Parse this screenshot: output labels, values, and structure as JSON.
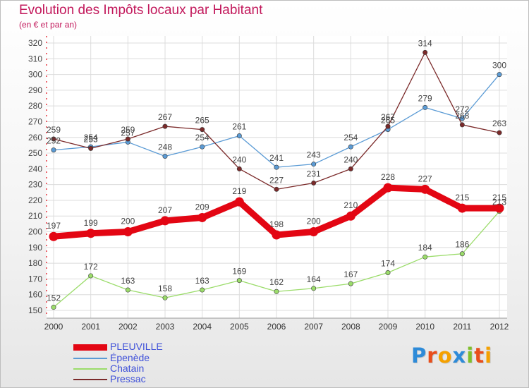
{
  "header": {
    "title": "Evolution des Impôts locaux par Habitant",
    "subtitle": "(en € et par an)"
  },
  "logo": {
    "text": "Proxiti",
    "letters": [
      {
        "char": "P",
        "color": "#2e8bd8"
      },
      {
        "char": "r",
        "color": "#e94e1b"
      },
      {
        "char": "o",
        "color": "#f5a100"
      },
      {
        "char": "x",
        "color": "#2e8bd8"
      },
      {
        "char": "i",
        "color": "#7fbf2b"
      },
      {
        "char": "t",
        "color": "#e94e1b"
      },
      {
        "char": "i",
        "color": "#f5a100"
      }
    ]
  },
  "chart_data": {
    "type": "line",
    "title": "Evolution des Impôts locaux par Habitant",
    "subtitle": "(en € et par an)",
    "x": [
      "2000",
      "2001",
      "2002",
      "2003",
      "2004",
      "2005",
      "2006",
      "2007",
      "2008",
      "2009",
      "2010",
      "2011",
      "2012"
    ],
    "ylim": [
      150,
      320
    ],
    "yticks": [
      150,
      160,
      170,
      180,
      190,
      200,
      210,
      220,
      230,
      240,
      250,
      260,
      270,
      280,
      290,
      300,
      310,
      320
    ],
    "grid": true,
    "legend_position": "bottom-left",
    "series": [
      {
        "name": "PLEUVILLE",
        "color": "#e30613",
        "emphasis": true,
        "values": [
          197,
          199,
          200,
          207,
          209,
          219,
          198,
          200,
          210,
          228,
          227,
          215,
          215
        ]
      },
      {
        "name": "Épenède",
        "color": "#5b9bd5",
        "emphasis": false,
        "values": [
          252,
          254,
          257,
          248,
          254,
          261,
          241,
          243,
          254,
          265,
          279,
          272,
          300
        ]
      },
      {
        "name": "Chatain",
        "color": "#9bdc6a",
        "emphasis": false,
        "values": [
          152,
          172,
          163,
          158,
          163,
          169,
          162,
          164,
          167,
          174,
          184,
          186,
          213
        ]
      },
      {
        "name": "Pressac",
        "color": "#7b2a2a",
        "emphasis": false,
        "values": [
          259,
          253,
          259,
          267,
          265,
          240,
          227,
          231,
          240,
          267,
          314,
          268,
          263
        ]
      }
    ]
  }
}
